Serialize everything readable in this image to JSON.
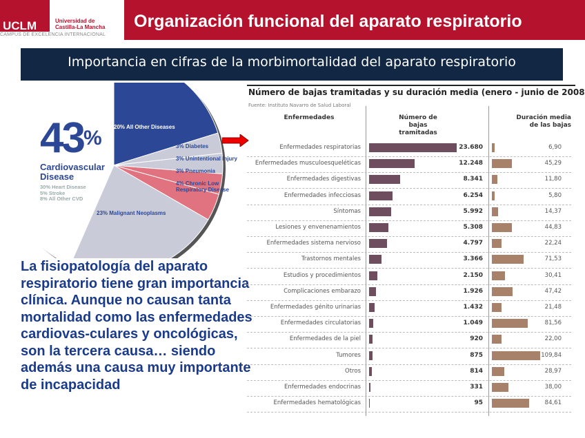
{
  "header": {
    "logo_text": "UCLM",
    "university": "Universidad de Castilla-La Mancha",
    "campus": "CAMPUS DE EXCELENCIA INTERNACIONAL",
    "title": "Organización funcional del aparato respiratorio"
  },
  "banner": "Importancia en cifras de la morbimortalidad del aparato respiratorio",
  "pie": {
    "big": "43",
    "pct": "%",
    "cvd_label": "Cardiovascular Disease",
    "cvd_parts": [
      "30% Heart Disease",
      "5% Stroke",
      "8% All Other CVD"
    ],
    "slices": [
      {
        "label": "20% All Other Diseases",
        "value": 20,
        "color": "#2b4796"
      },
      {
        "label": "3% Diabetes",
        "value": 3,
        "color": "#c9ccd8"
      },
      {
        "label": "3% Unintentional Injury",
        "value": 3,
        "color": "#c9ccd8"
      },
      {
        "label": "3% Pneumonia",
        "value": 3,
        "color": "#e0737f"
      },
      {
        "label": "4% Chronic Low Respiratory Disease",
        "value": 4,
        "color": "#e0737f"
      },
      {
        "label": "23% Malignant Neoplasms",
        "value": 23,
        "color": "#c9ccd8"
      },
      {
        "label": "43% Cardiovascular Disease",
        "value": 43,
        "color": "#ffffff"
      }
    ]
  },
  "paragraph": "La fisiopatología del aparato respiratorio tiene gran importancia clínica. Aunque no causan tanta mortalidad como las enfermedades cardiovas-culares y oncológicas, son la tercera causa… siendo además una causa muy importante de incapacidad",
  "table": {
    "title": "Número de bajas tramitadas y su duración media (enero - junio de 2008)",
    "source": "Fuente: Instituto Navarro de Salud Laboral",
    "col1": "Enfermedades",
    "col2": "Número de bajas tramitadas",
    "col3": "Duración media de las bajas",
    "rows": [
      {
        "name": "Enfermedades respiratorias",
        "count": "23.680",
        "n": 23680,
        "dur": "6,90",
        "d": 6.9
      },
      {
        "name": "Enfermedades musculoesqueléticas",
        "count": "12.248",
        "n": 12248,
        "dur": "45,29",
        "d": 45.29
      },
      {
        "name": "Enfermedades digestivas",
        "count": "8.341",
        "n": 8341,
        "dur": "11,80",
        "d": 11.8
      },
      {
        "name": "Enfermedades infecciosas",
        "count": "6.254",
        "n": 6254,
        "dur": "5,80",
        "d": 5.8
      },
      {
        "name": "Síntomas",
        "count": "5.992",
        "n": 5992,
        "dur": "14,37",
        "d": 14.37
      },
      {
        "name": "Lesiones y envenenamientos",
        "count": "5.308",
        "n": 5308,
        "dur": "44,83",
        "d": 44.83
      },
      {
        "name": "Enfermedades sistema nervioso",
        "count": "4.797",
        "n": 4797,
        "dur": "22,24",
        "d": 22.24
      },
      {
        "name": "Trastornos mentales",
        "count": "3.366",
        "n": 3366,
        "dur": "71,53",
        "d": 71.53
      },
      {
        "name": "Estudios y procedimientos",
        "count": "2.150",
        "n": 2150,
        "dur": "30,41",
        "d": 30.41
      },
      {
        "name": "Complicaciones embarazo",
        "count": "1.926",
        "n": 1926,
        "dur": "47,42",
        "d": 47.42
      },
      {
        "name": "Enfermedades génito urinarias",
        "count": "1.432",
        "n": 1432,
        "dur": "21,48",
        "d": 21.48
      },
      {
        "name": "Enfermedades circulatorias",
        "count": "1.049",
        "n": 1049,
        "dur": "81,56",
        "d": 81.56
      },
      {
        "name": "Enfermedades de la piel",
        "count": "920",
        "n": 920,
        "dur": "22,00",
        "d": 22.0
      },
      {
        "name": "Tumores",
        "count": "875",
        "n": 875,
        "dur": "109,84",
        "d": 109.84
      },
      {
        "name": "Otros",
        "count": "814",
        "n": 814,
        "dur": "28,97",
        "d": 28.97
      },
      {
        "name": "Enfermedades endocrinas",
        "count": "331",
        "n": 331,
        "dur": "38,00",
        "d": 38.0
      },
      {
        "name": "Enfermedades hematológicas",
        "count": "95",
        "n": 95,
        "dur": "84,61",
        "d": 84.61
      }
    ]
  }
}
